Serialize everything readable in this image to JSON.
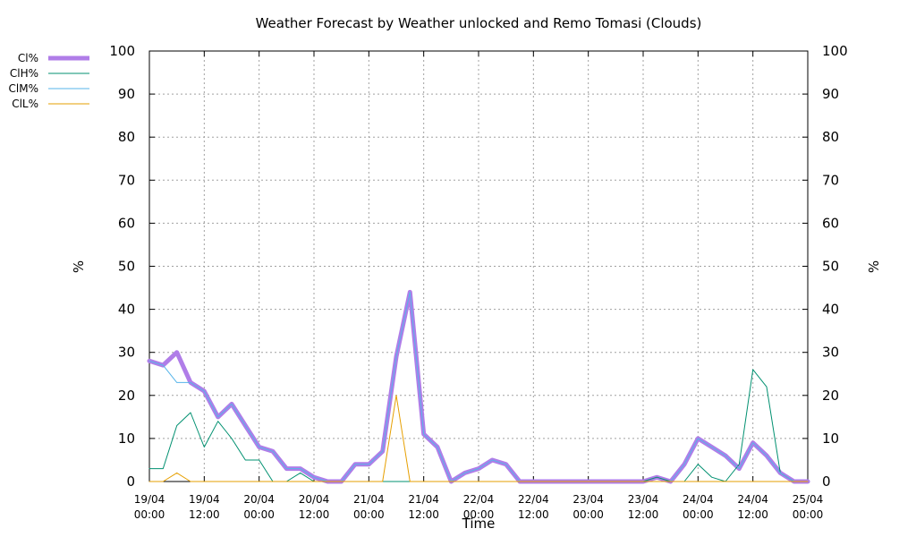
{
  "chart_data": {
    "type": "line",
    "title": "Weather Forecast by Weather unlocked and Remo Tomasi (Clouds)",
    "xlabel": "Time",
    "ylabel_left": "%",
    "ylabel_right": "%",
    "ylim": [
      0,
      100
    ],
    "yticks": [
      0,
      10,
      20,
      30,
      40,
      50,
      60,
      70,
      80,
      90,
      100
    ],
    "xlim": [
      0,
      144
    ],
    "x_unit": "hours from 19/04 00:00",
    "xticks": [
      {
        "x": 0,
        "line1": "19/04",
        "line2": "00:00"
      },
      {
        "x": 12,
        "line1": "19/04",
        "line2": "12:00"
      },
      {
        "x": 24,
        "line1": "20/04",
        "line2": "00:00"
      },
      {
        "x": 36,
        "line1": "20/04",
        "line2": "12:00"
      },
      {
        "x": 48,
        "line1": "21/04",
        "line2": "00:00"
      },
      {
        "x": 60,
        "line1": "21/04",
        "line2": "12:00"
      },
      {
        "x": 72,
        "line1": "22/04",
        "line2": "00:00"
      },
      {
        "x": 84,
        "line1": "22/04",
        "line2": "12:00"
      },
      {
        "x": 96,
        "line1": "23/04",
        "line2": "00:00"
      },
      {
        "x": 108,
        "line1": "23/04",
        "line2": "12:00"
      },
      {
        "x": 120,
        "line1": "24/04",
        "line2": "00:00"
      },
      {
        "x": 132,
        "line1": "24/04",
        "line2": "12:00"
      },
      {
        "x": 144,
        "line1": "25/04",
        "line2": "00:00"
      }
    ],
    "grid": true,
    "legend_position": "top-left outside",
    "x": [
      0,
      3,
      6,
      9,
      12,
      15,
      18,
      21,
      24,
      27,
      30,
      33,
      36,
      39,
      42,
      45,
      48,
      51,
      54,
      57,
      60,
      63,
      66,
      69,
      72,
      75,
      78,
      81,
      84,
      87,
      90,
      93,
      96,
      99,
      102,
      105,
      108,
      111,
      114,
      117,
      120,
      123,
      126,
      129,
      132,
      135,
      138,
      141,
      144
    ],
    "series": [
      {
        "name": "Cl%",
        "color": "#b07de8",
        "width": 5,
        "values": [
          28,
          27,
          30,
          23,
          21,
          15,
          18,
          13,
          8,
          7,
          3,
          3,
          1,
          0,
          0,
          4,
          4,
          7,
          29,
          44,
          11,
          8,
          0,
          2,
          3,
          5,
          4,
          0,
          0,
          0,
          0,
          0,
          0,
          0,
          0,
          0,
          0,
          1,
          0,
          4,
          10,
          8,
          6,
          3,
          9,
          6,
          2,
          0,
          0
        ]
      },
      {
        "name": "ClH%",
        "color": "#009070",
        "width": 1,
        "values": [
          3,
          3,
          13,
          16,
          8,
          14,
          10,
          5,
          5,
          0,
          0,
          2,
          0,
          0,
          0,
          0,
          0,
          0,
          0,
          0,
          0,
          0,
          0,
          0,
          0,
          0,
          0,
          0,
          0,
          0,
          0,
          0,
          0,
          0,
          0,
          0,
          0,
          1,
          0,
          0,
          4,
          1,
          0,
          4,
          26,
          22,
          2,
          0,
          0
        ]
      },
      {
        "name": "ClM%",
        "color": "#56b4e9",
        "width": 1,
        "values": [
          28,
          27,
          23,
          23,
          21,
          15,
          18,
          13,
          8,
          7,
          3,
          3,
          1,
          0,
          0,
          4,
          4,
          7,
          29,
          44,
          11,
          8,
          0,
          2,
          3,
          5,
          4,
          0,
          0,
          0,
          0,
          0,
          0,
          0,
          0,
          0,
          0,
          0,
          0,
          4,
          10,
          8,
          6,
          3,
          9,
          6,
          2,
          0,
          0
        ]
      },
      {
        "name": "ClL%",
        "color": "#e69f00",
        "width": 1,
        "values": [
          0,
          0,
          2,
          0,
          0,
          0,
          0,
          0,
          0,
          0,
          0,
          0,
          0,
          0,
          0,
          0,
          0,
          0,
          20,
          0,
          0,
          0,
          0,
          0,
          0,
          0,
          0,
          0,
          0,
          0,
          0,
          0,
          0,
          0,
          0,
          0,
          0,
          0,
          0,
          0,
          0,
          0,
          0,
          0,
          0,
          0,
          0,
          0,
          0
        ]
      }
    ]
  }
}
